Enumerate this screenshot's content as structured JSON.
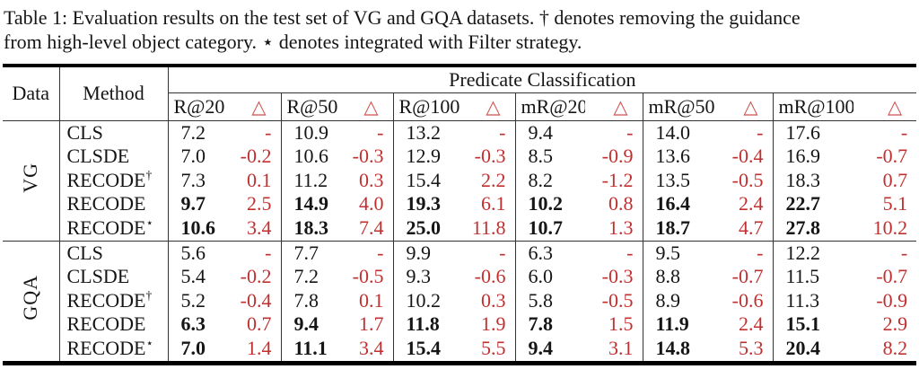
{
  "caption": {
    "line1": "Table 1: Evaluation results on the test set of VG and GQA datasets. † denotes removing the guidance",
    "line2": "from high-level object category. ⋆ denotes integrated with Filter strategy."
  },
  "table": {
    "data_label": "Data",
    "method_label": "Method",
    "group_header": "Predicate Classification",
    "metrics": [
      "R@20",
      "R@50",
      "R@100",
      "mR@20",
      "mR@50",
      "mR@100"
    ],
    "delta_symbol": "△",
    "colors": {
      "value_text": "#151515",
      "delta_text": "#c13030",
      "triangle": "#d2514f",
      "rule": "#000000"
    },
    "sections": [
      {
        "dataset": "VG",
        "rows": [
          {
            "method": "CLS",
            "sup": "",
            "bold": false,
            "values": [
              "7.2",
              "10.9",
              "13.2",
              "9.4",
              "14.0",
              "17.6"
            ],
            "deltas": [
              "-",
              "-",
              "-",
              "-",
              "-",
              "-"
            ]
          },
          {
            "method": "CLSDE",
            "sup": "",
            "bold": false,
            "values": [
              "7.0",
              "10.6",
              "12.9",
              "8.5",
              "13.6",
              "16.9"
            ],
            "deltas": [
              "-0.2",
              "-0.3",
              "-0.3",
              "-0.9",
              "-0.4",
              "-0.7"
            ]
          },
          {
            "method": "RECODE",
            "sup": "†",
            "bold": false,
            "values": [
              "7.3",
              "11.2",
              "15.4",
              "8.2",
              "13.5",
              "18.3"
            ],
            "deltas": [
              "0.1",
              "0.3",
              "2.2",
              "-1.2",
              "-0.5",
              "0.7"
            ]
          },
          {
            "method": "RECODE",
            "sup": "",
            "bold": true,
            "values": [
              "9.7",
              "14.9",
              "19.3",
              "10.2",
              "16.4",
              "22.7"
            ],
            "deltas": [
              "2.5",
              "4.0",
              "6.1",
              "0.8",
              "2.4",
              "5.1"
            ]
          },
          {
            "method": "RECODE",
            "sup": "⋆",
            "bold": true,
            "values": [
              "10.6",
              "18.3",
              "25.0",
              "10.7",
              "18.7",
              "27.8"
            ],
            "deltas": [
              "3.4",
              "7.4",
              "11.8",
              "1.3",
              "4.7",
              "10.2"
            ]
          }
        ]
      },
      {
        "dataset": "GQA",
        "rows": [
          {
            "method": "CLS",
            "sup": "",
            "bold": false,
            "values": [
              "5.6",
              "7.7",
              "9.9",
              "6.3",
              "9.5",
              "12.2"
            ],
            "deltas": [
              "-",
              "-",
              "-",
              "-",
              "-",
              "-"
            ]
          },
          {
            "method": "CLSDE",
            "sup": "",
            "bold": false,
            "values": [
              "5.4",
              "7.2",
              "9.3",
              "6.0",
              "8.8",
              "11.5"
            ],
            "deltas": [
              "-0.2",
              "-0.5",
              "-0.6",
              "-0.3",
              "-0.7",
              "-0.7"
            ]
          },
          {
            "method": "RECODE",
            "sup": "†",
            "bold": false,
            "values": [
              "5.2",
              "7.8",
              "10.2",
              "5.8",
              "8.9",
              "11.3"
            ],
            "deltas": [
              "-0.4",
              "0.1",
              "0.3",
              "-0.5",
              "-0.6",
              "-0.9"
            ]
          },
          {
            "method": "RECODE",
            "sup": "",
            "bold": true,
            "values": [
              "6.3",
              "9.4",
              "11.8",
              "7.8",
              "11.9",
              "15.1"
            ],
            "deltas": [
              "0.7",
              "1.7",
              "1.9",
              "1.5",
              "2.4",
              "2.9"
            ]
          },
          {
            "method": "RECODE",
            "sup": "⋆",
            "bold": true,
            "values": [
              "7.0",
              "11.1",
              "15.4",
              "9.4",
              "14.8",
              "20.4"
            ],
            "deltas": [
              "1.4",
              "3.4",
              "5.5",
              "3.1",
              "5.3",
              "8.2"
            ]
          }
        ]
      }
    ]
  }
}
